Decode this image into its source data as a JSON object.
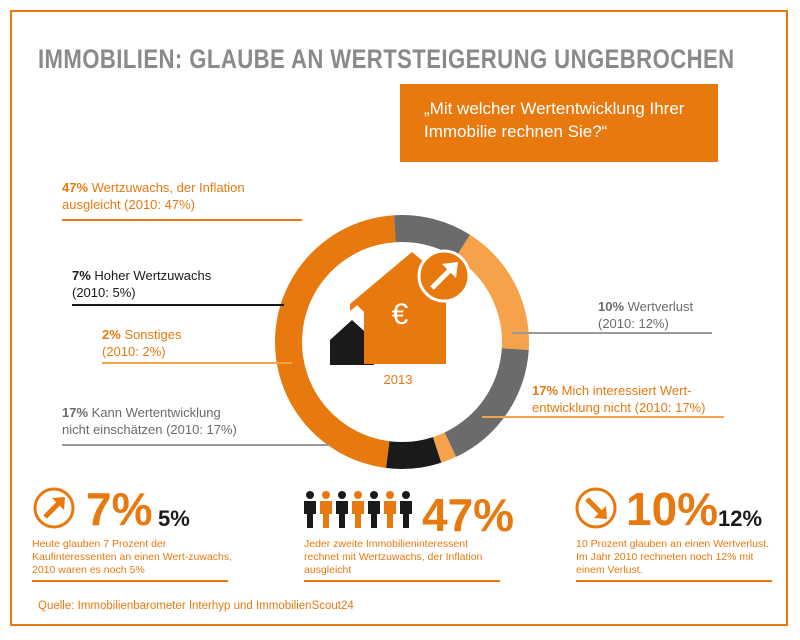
{
  "title": "IMMOBILIEN: GLAUBE AN WERTSTEIGERUNG UNGEBROCHEN",
  "question": "„Mit welcher Wertentwicklung Ihrer Immobilie rechnen Sie?“",
  "year": "2013",
  "chart_data": {
    "type": "pie",
    "title": "„Mit welcher Wertentwicklung Ihrer Immobilie rechnen Sie?“",
    "categories": [
      "Wertzuwachs, der Inflation ausgleicht",
      "Wertverlust",
      "Mich interessiert Wertentwicklung nicht",
      "Kann Wertentwicklung nicht einschätzen",
      "Sonstiges",
      "Hoher Wertzuwachs"
    ],
    "values": [
      47,
      10,
      17,
      17,
      2,
      7
    ],
    "values_2010": [
      47,
      12,
      17,
      17,
      2,
      5
    ],
    "colors": [
      "#e8790f",
      "#6b6b6b",
      "#f5a24a",
      "#6b6b6b",
      "#f5a24a",
      "#1a1a1a"
    ],
    "center_label": "2013"
  },
  "labels": [
    {
      "pct": "47%",
      "text1": " Wertzuwachs, der Inflation",
      "text2": "ausgleicht (2010: 47%)"
    },
    {
      "pct": "7%",
      "text1": " Hoher Wertzuwachs",
      "text2": "(2010: 5%)"
    },
    {
      "pct": "2%",
      "text1": " Sonstiges",
      "text2": "(2010: 2%)"
    },
    {
      "pct": "17%",
      "text1": " Kann Wertentwicklung",
      "text2": "nicht einschätzen (2010: 17%)"
    },
    {
      "pct": "10%",
      "text1": " Wertverlust",
      "text2": "(2010: 12%)"
    },
    {
      "pct": "17%",
      "text1": " Mich interessiert Wert-",
      "text2": "entwicklung nicht (2010: 17%)"
    }
  ],
  "bottom": [
    {
      "big": "7%",
      "small": "5%",
      "desc": "Heute glauben 7 Prozent der Kaufinteressenten an einen Wert-zuwachs, 2010 waren es noch 5%"
    },
    {
      "big": "47%",
      "desc": "Jeder zweite Immobilieninteressent rechnet mit Wertzuwachs, der Inflation ausgleicht"
    },
    {
      "big": "10%",
      "small": "12%",
      "desc": "10 Prozent glauben an einen Wertverlust. Im Jahr 2010 rechneten noch 12% mit einem Verlust."
    }
  ],
  "source": "Quelle: Immobilienbarometer Interhyp und ImmobilienScout24",
  "colors": {
    "accent": "#e8790f",
    "light": "#f5a24a",
    "dark": "#1a1a1a",
    "grey": "#6b6b6b"
  }
}
